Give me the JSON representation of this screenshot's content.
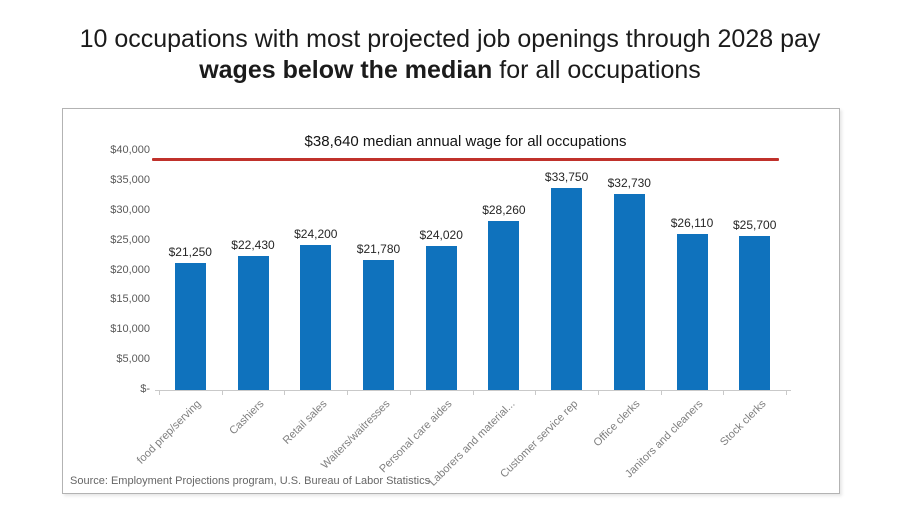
{
  "title": {
    "line1": "10 occupations with most projected job openings through",
    "line2_pre": "2028 pay ",
    "line2_bold": "wages below the median",
    "line2_post": " for all occupations"
  },
  "source": "Source: Employment Projections program, U.S. Bureau of Labor Statistics",
  "colors": {
    "bar": "#0f72bd",
    "median_line": "#c0312b",
    "axis": "#c9c9c9",
    "y_tick_label": "#595959",
    "category_label": "#7f7f7f",
    "value_label": "#262626"
  },
  "chart_data": {
    "type": "bar",
    "title": "10 occupations with most projected job openings through 2028 pay wages below the median for all occupations",
    "xlabel": "",
    "ylabel": "",
    "ylim": [
      0,
      40000
    ],
    "grid": "off",
    "legend": "none",
    "categories": [
      "food prep/serving",
      "Cashiers",
      "Retail sales",
      "Waiters/waitresses",
      "Personal care aides",
      "Laborers and material...",
      "Customer service rep",
      "Office clerks",
      "Janitors and cleaners",
      "Stock clerks"
    ],
    "values": [
      21250,
      22430,
      24200,
      21780,
      24020,
      28260,
      33750,
      32730,
      26110,
      25700
    ],
    "value_labels": [
      "$21,250",
      "$22,430",
      "$24,200",
      "$21,780",
      "$24,020",
      "$28,260",
      "$33,750",
      "$32,730",
      "$26,110",
      "$25,700"
    ],
    "y_ticks": [
      {
        "value": 40000,
        "label": "$40,000"
      },
      {
        "value": 35000,
        "label": "$35,000"
      },
      {
        "value": 30000,
        "label": "$30,000"
      },
      {
        "value": 25000,
        "label": "$25,000"
      },
      {
        "value": 20000,
        "label": "$20,000"
      },
      {
        "value": 15000,
        "label": "$15,000"
      },
      {
        "value": 10000,
        "label": "$10,000"
      },
      {
        "value": 5000,
        "label": "$5,000"
      },
      {
        "value": 0,
        "label": "$-"
      }
    ],
    "median_line": {
      "value": 38640,
      "label": "$38,640 median annual wage for all occupations"
    }
  }
}
